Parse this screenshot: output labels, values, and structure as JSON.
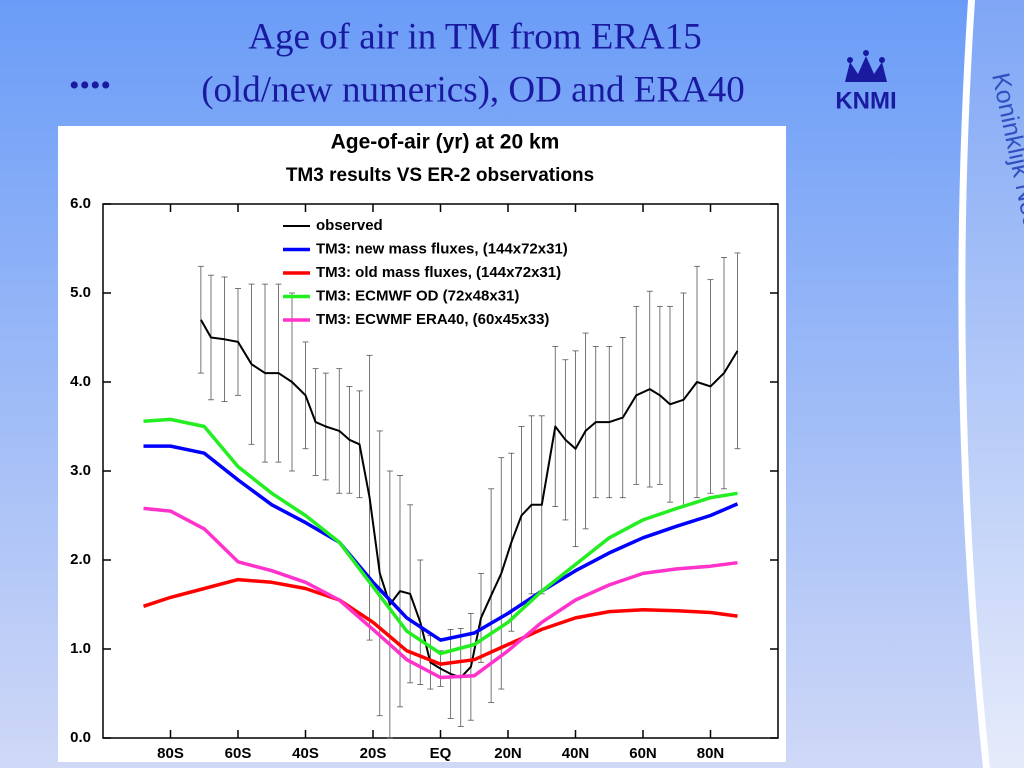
{
  "slide": {
    "title_line1": "Age of air in TM from  ERA15",
    "bullet": "••••",
    "title_line2": "(old/new numerics), OD and ERA40",
    "logo": "KNMI",
    "side_text": "Koninklijk Nederlands Meteorologisch Instituut"
  },
  "chart_data": {
    "type": "line",
    "title": "Age-of-air (yr) at 20 km",
    "subtitle": "TM3 results VS ER-2 observations",
    "xlim": [
      -100,
      100
    ],
    "ylim": [
      0,
      6
    ],
    "xticks": [
      {
        "value": -80,
        "label": "80S"
      },
      {
        "value": -60,
        "label": "60S"
      },
      {
        "value": -40,
        "label": "40S"
      },
      {
        "value": -20,
        "label": "20S"
      },
      {
        "value": 0,
        "label": "EQ"
      },
      {
        "value": 20,
        "label": "20N"
      },
      {
        "value": 40,
        "label": "40N"
      },
      {
        "value": 60,
        "label": "60N"
      },
      {
        "value": 80,
        "label": "80N"
      }
    ],
    "yticks": [
      {
        "value": 0,
        "label": "0.0"
      },
      {
        "value": 1,
        "label": "1.0"
      },
      {
        "value": 2,
        "label": "2.0"
      },
      {
        "value": 3,
        "label": "3.0"
      },
      {
        "value": 4,
        "label": "4.0"
      },
      {
        "value": 5,
        "label": "5.0"
      },
      {
        "value": 6,
        "label": "6.0"
      }
    ],
    "grid": false,
    "series": [
      {
        "name": "observed",
        "color": "#000000",
        "x": [
          -71,
          -68,
          -64,
          -60,
          -56,
          -52,
          -48,
          -44,
          -40,
          -37,
          -34,
          -30,
          -27,
          -24,
          -21,
          -18,
          -15,
          -12,
          -9,
          -6,
          -3,
          0,
          3,
          6,
          9,
          12,
          15,
          18,
          21,
          24,
          27,
          30,
          34,
          37,
          40,
          43,
          46,
          50,
          54,
          58,
          62,
          65,
          68,
          72,
          76,
          80,
          84,
          88
        ],
        "values": [
          4.7,
          4.5,
          4.48,
          4.45,
          4.2,
          4.1,
          4.1,
          4.0,
          3.85,
          3.55,
          3.5,
          3.45,
          3.35,
          3.3,
          2.7,
          1.85,
          1.5,
          1.65,
          1.62,
          1.3,
          0.85,
          0.78,
          0.72,
          0.68,
          0.8,
          1.35,
          1.6,
          1.85,
          2.2,
          2.5,
          2.62,
          2.62,
          3.5,
          3.35,
          3.25,
          3.45,
          3.55,
          3.55,
          3.6,
          3.85,
          3.92,
          3.85,
          3.75,
          3.8,
          4.0,
          3.95,
          4.1,
          4.35
        ],
        "errors": [
          0.6,
          0.7,
          0.7,
          0.6,
          0.9,
          1.0,
          1.0,
          1.0,
          0.6,
          0.6,
          0.6,
          0.7,
          0.6,
          0.6,
          1.6,
          1.6,
          1.5,
          1.3,
          1.0,
          0.7,
          0.3,
          0.2,
          0.5,
          0.55,
          0.6,
          0.5,
          1.2,
          1.3,
          1.0,
          1.0,
          1.0,
          1.0,
          0.9,
          0.9,
          1.1,
          1.1,
          0.85,
          0.85,
          0.9,
          1.0,
          1.1,
          1.0,
          1.1,
          1.2,
          1.3,
          1.2,
          1.3,
          1.1
        ]
      },
      {
        "name": "TM3: new mass fluxes, (144x72x31)",
        "color": "#0000ff",
        "x": [
          -88,
          -80,
          -70,
          -60,
          -50,
          -40,
          -30,
          -20,
          -10,
          0,
          10,
          20,
          30,
          40,
          50,
          60,
          70,
          80,
          88
        ],
        "values": [
          3.28,
          3.28,
          3.2,
          2.9,
          2.62,
          2.42,
          2.2,
          1.75,
          1.35,
          1.1,
          1.18,
          1.4,
          1.65,
          1.88,
          2.08,
          2.25,
          2.38,
          2.5,
          2.63
        ]
      },
      {
        "name": "TM3: old mass fluxes, (144x72x31)",
        "color": "#ff0000",
        "x": [
          -88,
          -80,
          -70,
          -60,
          -50,
          -40,
          -30,
          -20,
          -10,
          0,
          10,
          20,
          30,
          40,
          50,
          60,
          70,
          80,
          88
        ],
        "values": [
          1.48,
          1.58,
          1.68,
          1.78,
          1.75,
          1.68,
          1.55,
          1.3,
          0.98,
          0.83,
          0.88,
          1.05,
          1.22,
          1.35,
          1.42,
          1.44,
          1.43,
          1.41,
          1.37
        ]
      },
      {
        "name": "TM3: ECMWF OD (72x48x31)",
        "color": "#22ee22",
        "x": [
          -88,
          -80,
          -70,
          -60,
          -50,
          -40,
          -30,
          -20,
          -10,
          0,
          10,
          20,
          30,
          40,
          50,
          60,
          70,
          80,
          88
        ],
        "values": [
          3.56,
          3.58,
          3.5,
          3.05,
          2.75,
          2.5,
          2.2,
          1.7,
          1.2,
          0.95,
          1.05,
          1.3,
          1.65,
          1.95,
          2.25,
          2.45,
          2.58,
          2.7,
          2.75
        ]
      },
      {
        "name": "TM3: ECWMF ERA40, (60x45x33)",
        "color": "#ff33cc",
        "x": [
          -88,
          -80,
          -70,
          -60,
          -50,
          -40,
          -30,
          -20,
          -10,
          0,
          10,
          20,
          30,
          40,
          50,
          60,
          70,
          80,
          88
        ],
        "values": [
          2.58,
          2.55,
          2.35,
          1.98,
          1.88,
          1.75,
          1.55,
          1.22,
          0.88,
          0.68,
          0.7,
          0.98,
          1.3,
          1.55,
          1.72,
          1.85,
          1.9,
          1.93,
          1.97
        ]
      }
    ]
  }
}
